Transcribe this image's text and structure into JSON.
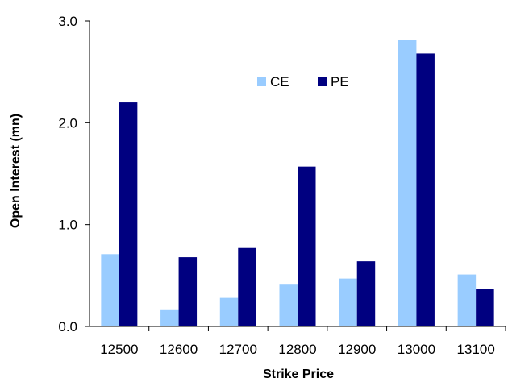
{
  "chart_data": {
    "type": "bar",
    "title": "",
    "xlabel": "Strike Price",
    "ylabel": "Open Interest (mn)",
    "categories": [
      "12500",
      "12600",
      "12700",
      "12800",
      "12900",
      "13000",
      "13100"
    ],
    "series": [
      {
        "name": "CE",
        "color": "#99ccff",
        "values": [
          0.71,
          0.16,
          0.28,
          0.41,
          0.47,
          2.81,
          0.51
        ]
      },
      {
        "name": "PE",
        "color": "#000080",
        "values": [
          2.2,
          0.68,
          0.77,
          1.57,
          0.64,
          2.68,
          0.37
        ]
      }
    ],
    "ylim": [
      0,
      3.0
    ],
    "yticks": [
      "0.0",
      "1.0",
      "2.0",
      "3.0"
    ],
    "grid": false,
    "legend_position": "top-center"
  }
}
